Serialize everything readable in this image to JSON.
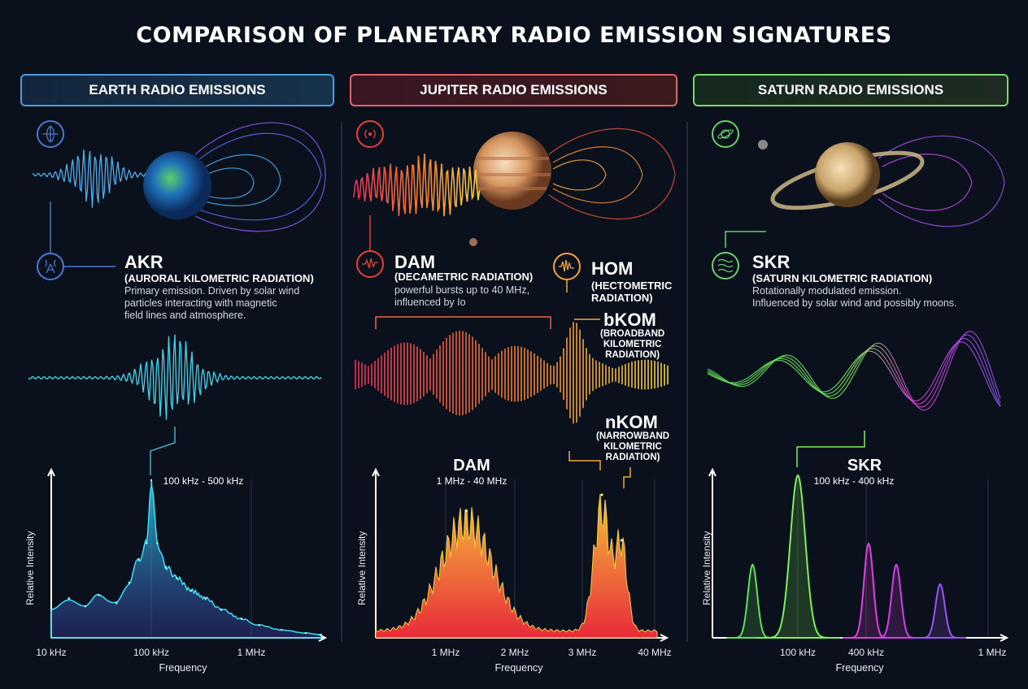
{
  "title": "COMPARISON OF PLANETARY RADIO EMISSION SIGNATURES",
  "colors": {
    "earth": "#4aa8ff",
    "jupiter_start": "#e83a5a",
    "jupiter_end": "#f2a53a",
    "saturn": "#7ed86a",
    "background": "#0b111c"
  },
  "panels": {
    "earth": {
      "header": "EARTH RADIO EMISSIONS",
      "top_icon": "globe-icon",
      "emission": {
        "icon": "radio-tower-icon",
        "name": "AKR",
        "full_name": "(AURORAL KILOMETRIC RADIATION)",
        "description_lines": [
          "Primary emission. Driven by solar wind",
          "particles interacting with magnetic",
          "field lines and atmosphere."
        ]
      }
    },
    "jupiter": {
      "header": "JUPITER RADIO EMISSIONS",
      "top_icon": "radio-waves-icon",
      "emissions": [
        {
          "icon": "waveform-icon",
          "name": "DAM",
          "full_name": "(DECAMETRIC RADIATION)",
          "description_lines": [
            "powerful bursts up to 40 MHz,",
            "influenced by Io"
          ]
        },
        {
          "icon": "waveform-icon",
          "name": "HOM",
          "full_name_lines": [
            "(HECTOMETRIC",
            "RADIATION)"
          ]
        },
        {
          "name": "bKOM",
          "full_name_lines": [
            "(BROADBAND",
            "KILOMETRIC",
            "RADIATION)"
          ]
        },
        {
          "name": "nKOM",
          "full_name_lines": [
            "(NARROWBAND",
            "KILOMETRIC",
            "RADIATION)"
          ]
        }
      ]
    },
    "saturn": {
      "header": "SATURN RADIO EMISSIONS",
      "top_icon": "saturn-icon",
      "emission": {
        "icon": "waves-icon",
        "name": "SKR",
        "full_name": "(SATURN KILOMETRIC RADIATION)",
        "description_lines": [
          "Rotationally modulated emission.",
          "Influenced by solar wind and possibly moons."
        ]
      }
    }
  },
  "chart_data": [
    {
      "type": "area",
      "panel": "earth",
      "xlabel": "Frequency",
      "ylabel": "Relative Intensity",
      "xscale": "log",
      "x_ticks": [
        "10 kHz",
        "100 kHz",
        "1 MHz"
      ],
      "x_tick_values_khz": [
        10,
        100,
        1000
      ],
      "peak_label": "100 kHz - 500 kHz",
      "series": [
        {
          "x_khz": [
            10,
            15,
            22,
            30,
            45,
            60,
            75,
            90,
            100,
            115,
            140,
            180,
            250,
            350,
            500,
            800,
            1200,
            2000,
            3500,
            5000
          ],
          "y": [
            0.18,
            0.25,
            0.2,
            0.27,
            0.22,
            0.35,
            0.5,
            0.6,
            1.0,
            0.6,
            0.45,
            0.38,
            0.3,
            0.25,
            0.18,
            0.12,
            0.08,
            0.05,
            0.03,
            0.02
          ]
        }
      ]
    },
    {
      "type": "area",
      "panel": "jupiter",
      "xlabel": "Frequency",
      "ylabel": "Relative Intensity",
      "x_ticks": [
        "1 MHz",
        "2 MHz",
        "3 MHz",
        "40 MHz"
      ],
      "x_tick_values_mhz": [
        1,
        2,
        3,
        40
      ],
      "peak_label": {
        "name": "DAM",
        "range": "1 MHz - 40 MHz"
      },
      "peaks": [
        {
          "f_mhz": 1.3,
          "y": 0.78
        },
        {
          "f_mhz": 13,
          "y": 0.88
        },
        {
          "f_mhz": 23,
          "y": 0.6
        }
      ]
    },
    {
      "type": "area",
      "panel": "saturn",
      "xlabel": "Frequency",
      "ylabel": "Relative Intensity",
      "x_ticks": [
        "100 kHz",
        "400 kHz",
        "1 MHz"
      ],
      "x_tick_values_khz": [
        100,
        400,
        1000
      ],
      "peak_label": {
        "name": "SKR",
        "range": "100 kHz - 400 kHz"
      },
      "peaks": [
        {
          "f_khz": 47,
          "y": 0.45,
          "color": "#5ee05a"
        },
        {
          "f_khz": 100,
          "y": 1.0,
          "color": "#7cf05a"
        },
        {
          "f_khz": 412,
          "y": 0.58,
          "color": "#e040e0"
        },
        {
          "f_khz": 548,
          "y": 0.45,
          "color": "#d040e8"
        },
        {
          "f_khz": 764,
          "y": 0.33,
          "color": "#9b55f0"
        }
      ]
    }
  ]
}
